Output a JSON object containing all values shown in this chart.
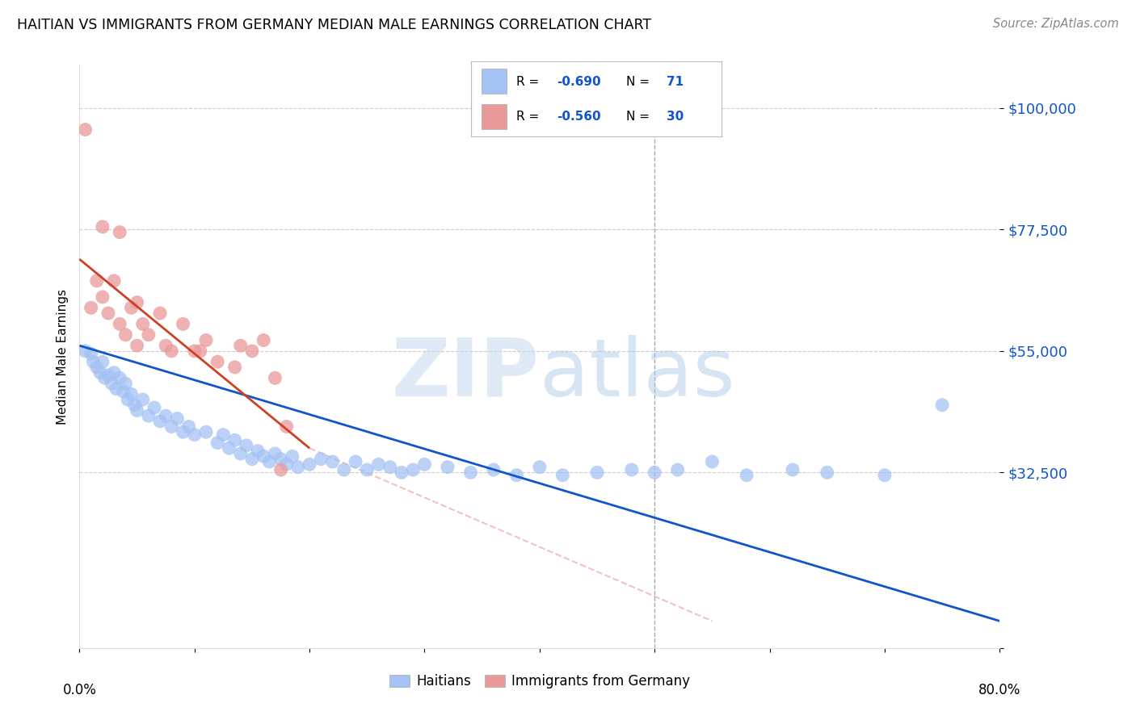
{
  "title": "HAITIAN VS IMMIGRANTS FROM GERMANY MEDIAN MALE EARNINGS CORRELATION CHART",
  "source": "Source: ZipAtlas.com",
  "ylabel": "Median Male Earnings",
  "ytick_vals": [
    0,
    32500,
    55000,
    77500,
    100000
  ],
  "ytick_labels": [
    "",
    "$32,500",
    "$55,000",
    "$77,500",
    "$100,000"
  ],
  "legend_r1": "R = -0.690",
  "legend_n1": "71",
  "legend_r2": "R = -0.560",
  "legend_n2": "30",
  "blue_color": "#a4c2f4",
  "pink_color": "#ea9999",
  "line_blue": "#1155cc",
  "line_pink": "#cc4125",
  "axis_label_color": "#1155cc",
  "blue_scatter_x": [
    0.5,
    1.0,
    1.2,
    1.5,
    1.8,
    2.0,
    2.2,
    2.5,
    2.8,
    3.0,
    3.2,
    3.5,
    3.8,
    4.0,
    4.2,
    4.5,
    4.8,
    5.0,
    5.5,
    6.0,
    6.5,
    7.0,
    7.5,
    8.0,
    8.5,
    9.0,
    9.5,
    10.0,
    11.0,
    12.0,
    12.5,
    13.0,
    13.5,
    14.0,
    14.5,
    15.0,
    15.5,
    16.0,
    16.5,
    17.0,
    17.5,
    18.0,
    18.5,
    19.0,
    20.0,
    21.0,
    22.0,
    23.0,
    24.0,
    25.0,
    26.0,
    27.0,
    28.0,
    29.0,
    30.0,
    32.0,
    34.0,
    36.0,
    38.0,
    40.0,
    42.0,
    45.0,
    48.0,
    50.0,
    52.0,
    55.0,
    58.0,
    62.0,
    65.0,
    70.0,
    75.0
  ],
  "blue_scatter_y": [
    55000,
    54500,
    53000,
    52000,
    51000,
    53000,
    50000,
    50500,
    49000,
    51000,
    48000,
    50000,
    47500,
    49000,
    46000,
    47000,
    45000,
    44000,
    46000,
    43000,
    44500,
    42000,
    43000,
    41000,
    42500,
    40000,
    41000,
    39500,
    40000,
    38000,
    39500,
    37000,
    38500,
    36000,
    37500,
    35000,
    36500,
    35500,
    34500,
    36000,
    35000,
    34000,
    35500,
    33500,
    34000,
    35000,
    34500,
    33000,
    34500,
    33000,
    34000,
    33500,
    32500,
    33000,
    34000,
    33500,
    32500,
    33000,
    32000,
    33500,
    32000,
    32500,
    33000,
    32500,
    33000,
    34500,
    32000,
    33000,
    32500,
    32000,
    45000
  ],
  "pink_scatter_x": [
    0.5,
    1.0,
    1.5,
    2.0,
    2.5,
    3.0,
    3.5,
    4.0,
    4.5,
    5.0,
    5.5,
    6.0,
    7.0,
    8.0,
    9.0,
    10.0,
    11.0,
    12.0,
    14.0,
    15.0,
    16.0,
    17.0,
    18.0,
    2.0,
    3.5,
    5.0,
    7.5,
    10.5,
    13.5,
    17.5
  ],
  "pink_scatter_y": [
    96000,
    63000,
    68000,
    65000,
    62000,
    68000,
    60000,
    58000,
    63000,
    56000,
    60000,
    58000,
    62000,
    55000,
    60000,
    55000,
    57000,
    53000,
    56000,
    55000,
    57000,
    50000,
    41000,
    78000,
    77000,
    64000,
    56000,
    55000,
    52000,
    33000
  ],
  "blue_line_x0": 0.0,
  "blue_line_x1": 80.0,
  "blue_line_y0": 56000,
  "blue_line_y1": 5000,
  "pink_line_x0": 0.0,
  "pink_line_x1": 20.0,
  "pink_line_y0": 72000,
  "pink_line_y1": 37000,
  "pink_dash_x0": 20.0,
  "pink_dash_x1": 55.0,
  "pink_dash_y0": 37000,
  "pink_dash_y1": 5000,
  "vline_x": 50.0,
  "xlim": [
    0,
    80
  ],
  "ylim": [
    0,
    108000
  ],
  "watermark_zip": "ZIP",
  "watermark_atlas": "atlas",
  "background_color": "#ffffff",
  "grid_color": "#cccccc"
}
